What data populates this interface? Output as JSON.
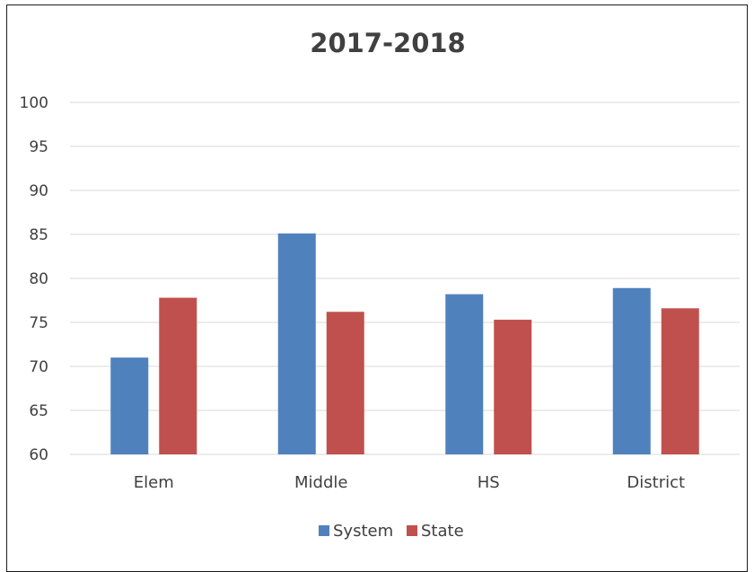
{
  "chart_data": {
    "type": "bar",
    "title": "2017-2018",
    "xlabel": "",
    "ylabel": "",
    "categories": [
      "Elem",
      "Middle",
      "HS",
      "District"
    ],
    "series": [
      {
        "name": "System",
        "color": "#4f81bd",
        "values": [
          71,
          85.1,
          78.2,
          78.9
        ]
      },
      {
        "name": "State",
        "color": "#c0504d",
        "values": [
          77.8,
          76.2,
          75.3,
          76.6
        ]
      }
    ],
    "ylim": [
      60,
      100
    ],
    "yticks": [
      60,
      65,
      70,
      75,
      80,
      85,
      90,
      95,
      100
    ],
    "grid": true,
    "legend_position": "bottom"
  }
}
